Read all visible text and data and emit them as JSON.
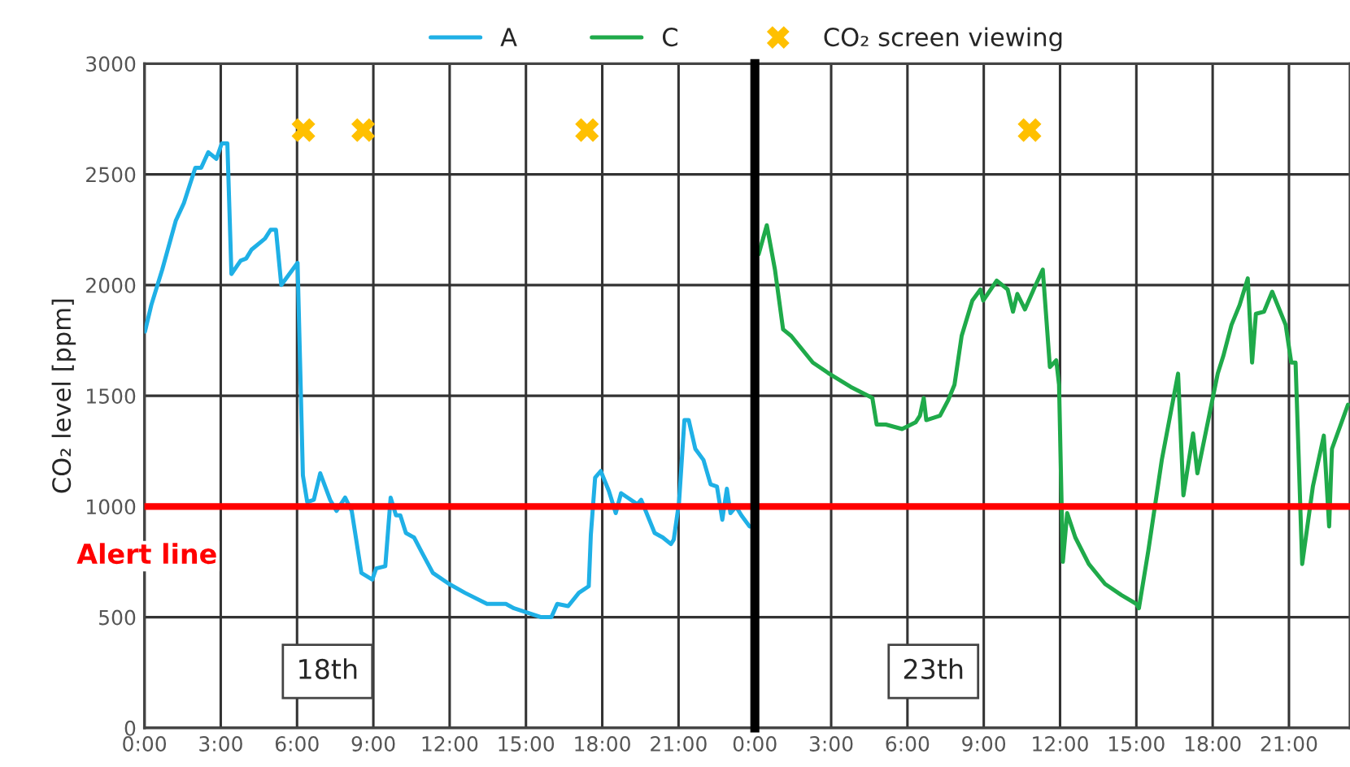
{
  "chart_data": [
    {
      "type": "line",
      "ylabel": "CO₂ level [ppm]",
      "xlim": [
        0,
        24
      ],
      "ylim": [
        0,
        3000
      ],
      "xticks": [
        {
          "value": 0,
          "label": "0:00"
        },
        {
          "value": 3,
          "label": "3:00"
        },
        {
          "value": 6,
          "label": "6:00"
        },
        {
          "value": 9,
          "label": "9:00"
        },
        {
          "value": 12,
          "label": "12:00"
        },
        {
          "value": 15,
          "label": "15:00"
        },
        {
          "value": 18,
          "label": "18:00"
        },
        {
          "value": 21,
          "label": "21:00"
        }
      ],
      "yticks": [
        0,
        500,
        1000,
        1500,
        2000,
        2500,
        3000
      ],
      "grid": true,
      "legend": "top",
      "series": [
        {
          "name": "A",
          "type": "line",
          "color": "#1fb0e6",
          "marker": "none",
          "x": [
            0.02,
            0.27,
            0.7,
            1.23,
            1.55,
            2.0,
            2.23,
            2.51,
            2.83,
            3.04,
            3.26,
            3.42,
            3.78,
            4.0,
            4.21,
            4.74,
            4.96,
            5.17,
            5.38,
            6.02,
            6.13,
            6.23,
            6.4,
            6.66,
            6.91,
            7.3,
            7.55,
            7.89,
            8.15,
            8.53,
            8.96,
            9.11,
            9.47,
            9.68,
            9.89,
            10.06,
            10.28,
            10.6,
            10.92,
            11.34,
            11.98,
            12.6,
            13.47,
            14.21,
            14.53,
            15.6,
            16.0,
            16.23,
            16.66,
            17.08,
            17.47,
            17.55,
            17.72,
            17.94,
            18.26,
            18.53,
            18.74,
            19.0,
            19.38,
            19.53,
            20.06,
            20.38,
            20.7,
            20.81,
            21.02,
            21.23,
            21.4,
            21.66,
            21.98,
            22.26,
            22.51,
            22.72,
            22.9,
            23.04,
            23.26,
            23.47,
            23.79,
            23.89
          ],
          "values": [
            1790,
            1910,
            2070,
            2290,
            2370,
            2530,
            2530,
            2600,
            2570,
            2640,
            2640,
            2050,
            2110,
            2120,
            2160,
            2210,
            2250,
            2250,
            2000,
            2100,
            1600,
            1140,
            1020,
            1030,
            1150,
            1030,
            980,
            1040,
            980,
            700,
            670,
            720,
            730,
            1040,
            960,
            960,
            880,
            860,
            790,
            700,
            650,
            610,
            560,
            560,
            540,
            500,
            500,
            560,
            550,
            610,
            640,
            870,
            1130,
            1160,
            1070,
            970,
            1060,
            1040,
            1010,
            1030,
            880,
            860,
            830,
            850,
            1020,
            1390,
            1390,
            1260,
            1210,
            1100,
            1090,
            940,
            1080,
            970,
            1000,
            960,
            910,
            910
          ]
        },
        {
          "name": "CO₂ screen viewing",
          "type": "scatter",
          "color": "#ffc000",
          "marker": "cross",
          "x": [
            6.25,
            8.6,
            17.4
          ],
          "values": [
            2700,
            2700,
            2700
          ]
        }
      ],
      "ref_lines": [
        {
          "axis": "y",
          "value": 1000,
          "label": "Alert line",
          "color": "#ff0000",
          "line_style": "solid"
        }
      ],
      "annotations": [
        "18th"
      ]
    },
    {
      "type": "line",
      "xlim": [
        0,
        23.4
      ],
      "ylim": [
        0,
        3000
      ],
      "xticks": [
        {
          "value": 0,
          "label": "0:00"
        },
        {
          "value": 3,
          "label": "3:00"
        },
        {
          "value": 6,
          "label": "6:00"
        },
        {
          "value": 9,
          "label": "9:00"
        },
        {
          "value": 12,
          "label": "12:00"
        },
        {
          "value": 15,
          "label": "15:00"
        },
        {
          "value": 18,
          "label": "18:00"
        },
        {
          "value": 21,
          "label": "21:00"
        }
      ],
      "yticks": [
        0,
        500,
        1000,
        1500,
        2000,
        2500,
        3000
      ],
      "tick_labels": "x",
      "grid": true,
      "series": [
        {
          "name": "C",
          "type": "line",
          "color": "#1faa4a",
          "marker": "none",
          "x": [
            0.15,
            0.47,
            0.79,
            1.11,
            1.43,
            2.28,
            2.92,
            3.77,
            4.62,
            4.79,
            5.15,
            5.47,
            5.79,
            6.32,
            6.49,
            6.64,
            6.74,
            7.28,
            7.6,
            7.85,
            8.13,
            8.55,
            8.87,
            8.98,
            9.51,
            9.94,
            10.15,
            10.32,
            10.62,
            11.0,
            11.32,
            11.6,
            11.85,
            11.96,
            12.11,
            12.28,
            12.6,
            13.13,
            13.77,
            14.41,
            15.0,
            15.1,
            15.47,
            16.0,
            16.64,
            16.85,
            17.23,
            17.4,
            18.2,
            18.42,
            18.74,
            19.06,
            19.38,
            19.55,
            19.7,
            20.02,
            20.34,
            20.87,
            21.09,
            21.26,
            21.52,
            21.94,
            22.37,
            22.58,
            22.69,
            23.32
          ],
          "values": [
            2140,
            2270,
            2070,
            1800,
            1770,
            1650,
            1600,
            1540,
            1490,
            1370,
            1370,
            1360,
            1350,
            1380,
            1410,
            1490,
            1390,
            1410,
            1480,
            1550,
            1770,
            1930,
            1980,
            1930,
            2020,
            1980,
            1880,
            1960,
            1890,
            1990,
            2070,
            1630,
            1660,
            1550,
            750,
            970,
            860,
            740,
            650,
            600,
            560,
            540,
            800,
            1210,
            1600,
            1050,
            1330,
            1150,
            1600,
            1680,
            1820,
            1910,
            2030,
            1650,
            1870,
            1880,
            1970,
            1820,
            1650,
            1650,
            740,
            1090,
            1320,
            910,
            1260,
            1460
          ]
        },
        {
          "type": "scatter",
          "color": "#ffc000",
          "marker": "cross",
          "x": [
            10.8
          ],
          "values": [
            2700
          ]
        }
      ],
      "ref_lines": [
        {
          "axis": "y",
          "value": 1000,
          "color": "#ff0000",
          "line_style": "solid"
        }
      ],
      "annotations": [
        "23th"
      ]
    }
  ]
}
